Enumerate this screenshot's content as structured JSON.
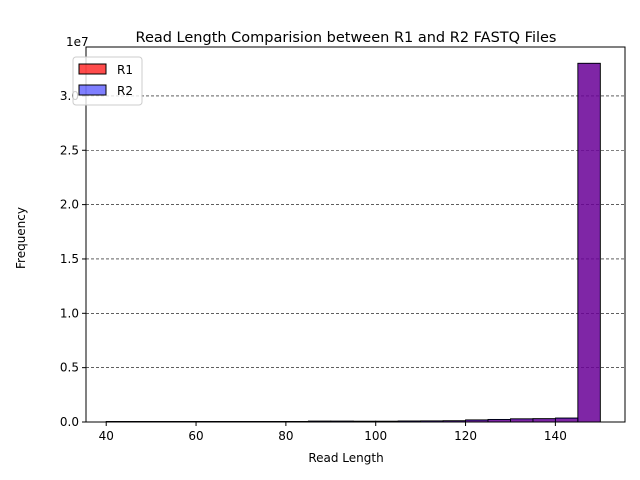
{
  "chart_data": {
    "type": "bar",
    "title": "Read Length Comparision between R1 and R2 FASTQ Files",
    "xlabel": "Read Length",
    "ylabel": "Frequency",
    "y_multiplier_label": "1e7",
    "xlim": [
      35.5,
      155.5
    ],
    "ylim": [
      0,
      34500000
    ],
    "xticks": [
      40,
      60,
      80,
      100,
      120,
      140
    ],
    "xtick_labels": [
      "40",
      "60",
      "80",
      "100",
      "120",
      "140"
    ],
    "yticks": [
      0,
      5000000,
      10000000,
      15000000,
      20000000,
      25000000,
      30000000
    ],
    "ytick_labels": [
      "0.0",
      "0.5",
      "1.0",
      "1.5",
      "2.0",
      "2.5",
      "3.0"
    ],
    "grid": "y-dashed",
    "legend_position": "top-left",
    "bins": [
      [
        40,
        45
      ],
      [
        45,
        50
      ],
      [
        50,
        55
      ],
      [
        55,
        60
      ],
      [
        60,
        65
      ],
      [
        65,
        70
      ],
      [
        70,
        75
      ],
      [
        75,
        80
      ],
      [
        80,
        85
      ],
      [
        85,
        90
      ],
      [
        90,
        95
      ],
      [
        95,
        100
      ],
      [
        100,
        105
      ],
      [
        105,
        110
      ],
      [
        110,
        115
      ],
      [
        115,
        120
      ],
      [
        120,
        125
      ],
      [
        125,
        130
      ],
      [
        130,
        135
      ],
      [
        135,
        140
      ],
      [
        140,
        145
      ],
      [
        145,
        150
      ]
    ],
    "series": [
      {
        "name": "R1",
        "color": "#ff0000",
        "alpha": 0.7,
        "values": [
          50000,
          50000,
          50000,
          50000,
          50000,
          50000,
          50000,
          50000,
          50000,
          60000,
          60000,
          70000,
          70000,
          90000,
          100000,
          110000,
          170000,
          220000,
          280000,
          300000,
          340000,
          33000000
        ]
      },
      {
        "name": "R2",
        "color": "#0000ff",
        "alpha": 0.5,
        "values": [
          50000,
          50000,
          50000,
          50000,
          50000,
          50000,
          50000,
          50000,
          50000,
          90000,
          90000,
          70000,
          70000,
          100000,
          110000,
          120000,
          200000,
          240000,
          300000,
          310000,
          370000,
          33000000
        ]
      }
    ]
  }
}
